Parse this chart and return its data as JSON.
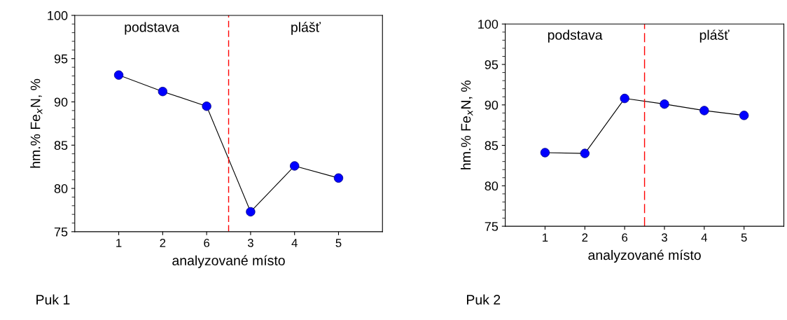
{
  "chart_data": [
    {
      "type": "line",
      "xlabel": "analyzované místo",
      "ylabel": "hm.% Fe$_{x}$N, %",
      "categories": [
        "1",
        "2",
        "6",
        "3",
        "4",
        "5"
      ],
      "series": [
        {
          "color": "#0000ff",
          "values": [
            93.1,
            91.2,
            89.5,
            77.3,
            82.6,
            81.2
          ]
        }
      ],
      "ylim": [
        75,
        100
      ],
      "yticks": [
        75,
        80,
        85,
        90,
        95,
        100
      ],
      "marker": "circle",
      "line_style": "solid",
      "grid": false,
      "legend": false,
      "annotations": [
        "podstava",
        "plášť",
        "Puk 1"
      ]
    },
    {
      "type": "line",
      "xlabel": "analyzované místo",
      "ylabel": "hm.% Fe$_{x}$N, %",
      "categories": [
        "1",
        "2",
        "6",
        "3",
        "4",
        "5"
      ],
      "series": [
        {
          "color": "#0000ff",
          "values": [
            84.1,
            84.0,
            90.8,
            90.1,
            89.3,
            88.7
          ]
        }
      ],
      "ylim": [
        75,
        100
      ],
      "yticks": [
        75,
        80,
        85,
        90,
        95,
        100
      ],
      "marker": "circle",
      "line_style": "solid",
      "grid": false,
      "legend": false,
      "annotations": [
        "podstava",
        "plášť",
        "Puk 2"
      ]
    }
  ]
}
